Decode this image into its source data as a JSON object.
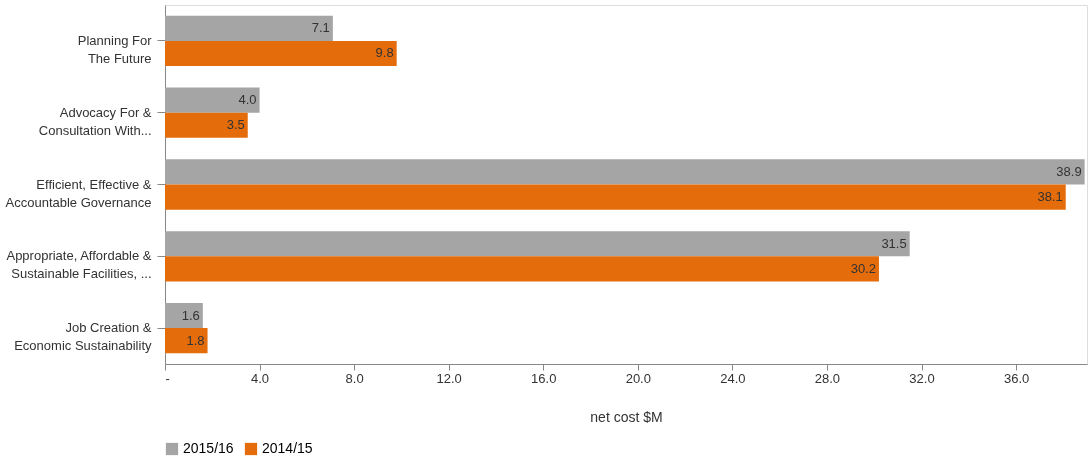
{
  "chart_data": {
    "type": "bar",
    "orientation": "horizontal",
    "xlabel": "net cost $M",
    "categories": [
      "Planning For\nThe Future",
      "Advocacy For &\nConsultation With...",
      "Efficient, Effective &\nAccountable Governance",
      "Appropriate, Affordable &\nSustainable Facilities, ...",
      "Job Creation &\nEconomic Sustainability"
    ],
    "series": [
      {
        "name": "2015/16",
        "color": "#a5a5a5",
        "values": [
          7.1,
          4.0,
          38.9,
          31.5,
          1.6
        ],
        "value_labels": [
          "7.1",
          "4.0",
          "38.9",
          "31.5",
          "1.6"
        ]
      },
      {
        "name": "2014/15",
        "color": "#e46c0a",
        "values": [
          9.8,
          3.5,
          38.1,
          30.2,
          1.8
        ],
        "value_labels": [
          "9.8",
          "3.5",
          "38.1",
          "30.2",
          "1.8"
        ]
      }
    ],
    "xlim": [
      0,
      39
    ],
    "xticks": [
      {
        "value": 0,
        "label": "-"
      },
      {
        "value": 4,
        "label": "4.0"
      },
      {
        "value": 8,
        "label": "8.0"
      },
      {
        "value": 12,
        "label": "12.0"
      },
      {
        "value": 16,
        "label": "16.0"
      },
      {
        "value": 20,
        "label": "20.0"
      },
      {
        "value": 24,
        "label": "24.0"
      },
      {
        "value": 28,
        "label": "28.0"
      },
      {
        "value": 32,
        "label": "32.0"
      },
      {
        "value": 36,
        "label": "36.0"
      }
    ],
    "legend": "bottom",
    "grid": false
  }
}
